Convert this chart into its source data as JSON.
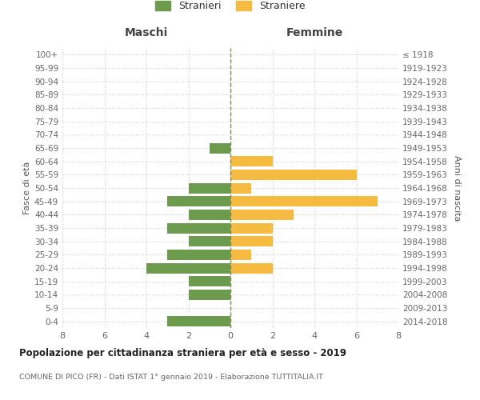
{
  "age_groups": [
    "0-4",
    "5-9",
    "10-14",
    "15-19",
    "20-24",
    "25-29",
    "30-34",
    "35-39",
    "40-44",
    "45-49",
    "50-54",
    "55-59",
    "60-64",
    "65-69",
    "70-74",
    "75-79",
    "80-84",
    "85-89",
    "90-94",
    "95-99",
    "100+"
  ],
  "birth_years": [
    "2014-2018",
    "2009-2013",
    "2004-2008",
    "1999-2003",
    "1994-1998",
    "1989-1993",
    "1984-1988",
    "1979-1983",
    "1974-1978",
    "1969-1973",
    "1964-1968",
    "1959-1963",
    "1954-1958",
    "1949-1953",
    "1944-1948",
    "1939-1943",
    "1934-1938",
    "1929-1933",
    "1924-1928",
    "1919-1923",
    "≤ 1918"
  ],
  "males": [
    3,
    0,
    2,
    2,
    4,
    3,
    2,
    3,
    2,
    3,
    2,
    0,
    0,
    1,
    0,
    0,
    0,
    0,
    0,
    0,
    0
  ],
  "females": [
    0,
    0,
    0,
    0,
    2,
    1,
    2,
    2,
    3,
    7,
    1,
    6,
    2,
    0,
    0,
    0,
    0,
    0,
    0,
    0,
    0
  ],
  "male_color": "#6d9b4e",
  "female_color": "#f5bb41",
  "background_color": "#ffffff",
  "grid_color": "#cccccc",
  "title": "Popolazione per cittadinanza straniera per età e sesso - 2019",
  "subtitle": "COMUNE DI PICO (FR) - Dati ISTAT 1° gennaio 2019 - Elaborazione TUTTITALIA.IT",
  "legend_male": "Stranieri",
  "legend_female": "Straniere",
  "header_left": "Maschi",
  "header_right": "Femmine",
  "ylabel_left": "Fasce di età",
  "ylabel_right": "Anni di nascita",
  "xlim": 8
}
